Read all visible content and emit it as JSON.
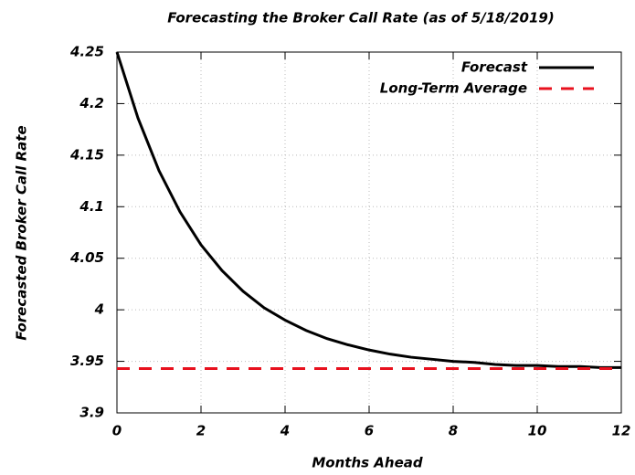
{
  "chart_data": {
    "type": "line",
    "title": "Forecasting the Broker Call Rate (as of 5/18/2019)",
    "x_label": "Months Ahead",
    "y_label": "Forecasted Broker Call Rate",
    "x": [
      0,
      0.5,
      1,
      1.5,
      2,
      2.5,
      3,
      3.5,
      4,
      4.5,
      5,
      5.5,
      6,
      6.5,
      7,
      7.5,
      8,
      8.5,
      9,
      9.5,
      10,
      10.5,
      11,
      11.5,
      12
    ],
    "series": [
      {
        "name": "Forecast",
        "color": "#000000",
        "dash": false,
        "values": [
          4.25,
          4.186,
          4.135,
          4.095,
          4.063,
          4.038,
          4.018,
          4.002,
          3.99,
          3.98,
          3.972,
          3.966,
          3.961,
          3.957,
          3.954,
          3.952,
          3.95,
          3.949,
          3.947,
          3.946,
          3.946,
          3.945,
          3.945,
          3.944,
          3.944
        ]
      },
      {
        "name": "Long-Term Average",
        "color": "#e8111e",
        "dash": true,
        "values": [
          3.943,
          3.943,
          3.943,
          3.943,
          3.943,
          3.943,
          3.943,
          3.943,
          3.943,
          3.943,
          3.943,
          3.943,
          3.943,
          3.943,
          3.943,
          3.943,
          3.943,
          3.943,
          3.943,
          3.943,
          3.943,
          3.943,
          3.943,
          3.943,
          3.943
        ]
      }
    ],
    "xlim": [
      0,
      12
    ],
    "xticks": [
      0,
      2,
      4,
      6,
      8,
      10,
      12
    ],
    "ylim": [
      3.9,
      4.25
    ],
    "yticks": [
      3.9,
      3.95,
      4,
      4.05,
      4.1,
      4.15,
      4.2,
      4.25
    ],
    "grid": true,
    "legend": "top-right"
  }
}
